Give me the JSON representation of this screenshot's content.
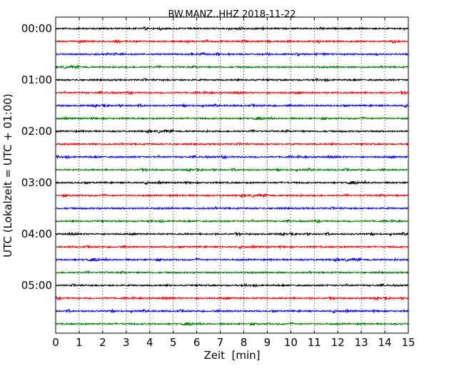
{
  "chart_data": {
    "type": "line",
    "title": "BW.MANZ..HHZ 2018-11-22",
    "xlabel": "Zeit  [min]",
    "ylabel": "UTC (Lokalzeit = UTC + 01:00)",
    "xlim": [
      0,
      15
    ],
    "x_ticks": [
      "0",
      "1",
      "2",
      "3",
      "4",
      "5",
      "6",
      "7",
      "8",
      "9",
      "10",
      "11",
      "12",
      "13",
      "14",
      "15"
    ],
    "y_tick_labels": [
      "00:00",
      "01:00",
      "02:00",
      "03:00",
      "04:00",
      "05:00"
    ],
    "traces_per_hour": 4,
    "trace_minutes": 15,
    "grid": {
      "x": true,
      "y": false,
      "style": "dotted"
    },
    "colors": [
      "#000000",
      "#ff0000",
      "#0000ff",
      "#008000"
    ],
    "series": [
      {
        "start": "00:00",
        "color": "#000000"
      },
      {
        "start": "00:15",
        "color": "#ff0000"
      },
      {
        "start": "00:30",
        "color": "#0000ff"
      },
      {
        "start": "00:45",
        "color": "#008000"
      },
      {
        "start": "01:00",
        "color": "#000000"
      },
      {
        "start": "01:15",
        "color": "#ff0000"
      },
      {
        "start": "01:30",
        "color": "#0000ff"
      },
      {
        "start": "01:45",
        "color": "#008000"
      },
      {
        "start": "02:00",
        "color": "#000000"
      },
      {
        "start": "02:15",
        "color": "#ff0000"
      },
      {
        "start": "02:30",
        "color": "#0000ff"
      },
      {
        "start": "02:45",
        "color": "#008000"
      },
      {
        "start": "03:00",
        "color": "#000000"
      },
      {
        "start": "03:15",
        "color": "#ff0000"
      },
      {
        "start": "03:30",
        "color": "#0000ff"
      },
      {
        "start": "03:45",
        "color": "#008000"
      },
      {
        "start": "04:00",
        "color": "#000000"
      },
      {
        "start": "04:15",
        "color": "#ff0000"
      },
      {
        "start": "04:30",
        "color": "#0000ff"
      },
      {
        "start": "04:45",
        "color": "#008000"
      },
      {
        "start": "05:00",
        "color": "#000000"
      },
      {
        "start": "05:15",
        "color": "#ff0000"
      },
      {
        "start": "05:30",
        "color": "#0000ff"
      },
      {
        "start": "05:45",
        "color": "#008000"
      }
    ]
  }
}
